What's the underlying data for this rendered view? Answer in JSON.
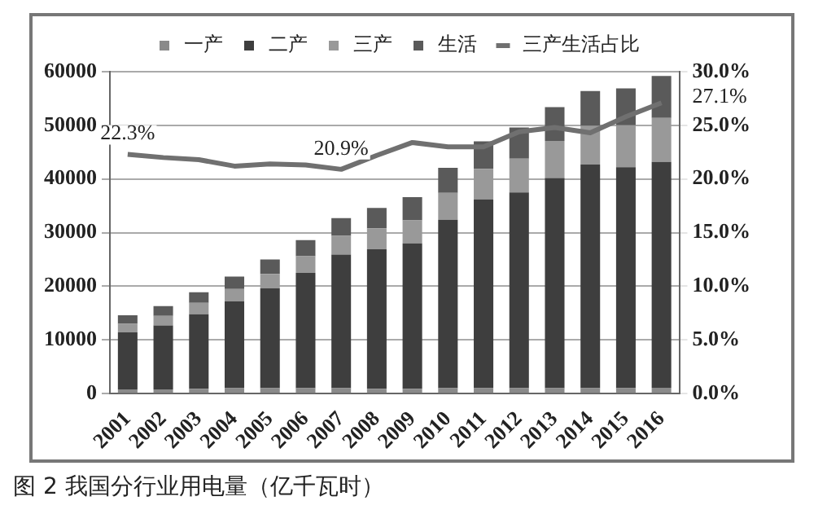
{
  "chart_data": {
    "type": "bar",
    "stacked": true,
    "categories": [
      "2001",
      "2002",
      "2003",
      "2004",
      "2005",
      "2006",
      "2007",
      "2008",
      "2009",
      "2010",
      "2011",
      "2012",
      "2013",
      "2014",
      "2015",
      "2016"
    ],
    "series": [
      {
        "name": "一产",
        "color": "#8a8a8a",
        "values": [
          800,
          800,
          900,
          1000,
          1000,
          1000,
          1000,
          900,
          900,
          1000,
          1000,
          1000,
          1000,
          1000,
          1000,
          1100
        ]
      },
      {
        "name": "二产",
        "color": "#3e3e3e",
        "values": [
          10600,
          11900,
          13900,
          16200,
          18600,
          21500,
          24900,
          26000,
          27100,
          31400,
          35200,
          36500,
          39200,
          41700,
          41200,
          42100
        ]
      },
      {
        "name": "三产",
        "color": "#999999",
        "values": [
          1600,
          1800,
          2100,
          2300,
          2700,
          3100,
          3500,
          3900,
          4300,
          5000,
          5700,
          6300,
          6900,
          7200,
          7800,
          8200
        ]
      },
      {
        "name": "生活",
        "color": "#5a5a5a",
        "values": [
          1600,
          1800,
          2000,
          2300,
          2700,
          3000,
          3300,
          3800,
          4300,
          4700,
          5100,
          5800,
          6300,
          6500,
          6900,
          7800
        ]
      },
      {
        "name": "三产生活占比",
        "type": "line",
        "axis": "y2",
        "color": "#707070",
        "marker": "none",
        "values": [
          22.3,
          22.0,
          21.8,
          21.2,
          21.4,
          21.3,
          20.9,
          22.2,
          23.4,
          23.0,
          23.0,
          24.4,
          24.8,
          24.3,
          25.8,
          27.1
        ],
        "value_labels": [
          "22.3%",
          null,
          null,
          null,
          null,
          null,
          "20.9%",
          null,
          null,
          null,
          null,
          null,
          null,
          null,
          null,
          "27.1%"
        ]
      }
    ],
    "ylim": [
      0,
      60000
    ],
    "yticks": [
      0,
      10000,
      20000,
      30000,
      40000,
      50000,
      60000
    ],
    "y2lim": [
      0,
      30
    ],
    "y2ticks": [
      {
        "value": 0,
        "label": "0.0%"
      },
      {
        "value": 5,
        "label": "5.0%"
      },
      {
        "value": 10,
        "label": "10.0%"
      },
      {
        "value": 15,
        "label": "15.0%"
      },
      {
        "value": 20,
        "label": "20.0%"
      },
      {
        "value": 25,
        "label": "25.0%"
      },
      {
        "value": 30,
        "label": "30.0%"
      }
    ],
    "grid": "y",
    "legend": "top",
    "annotations": [
      "图 2 我国分行业用电量（亿千瓦时）"
    ]
  }
}
